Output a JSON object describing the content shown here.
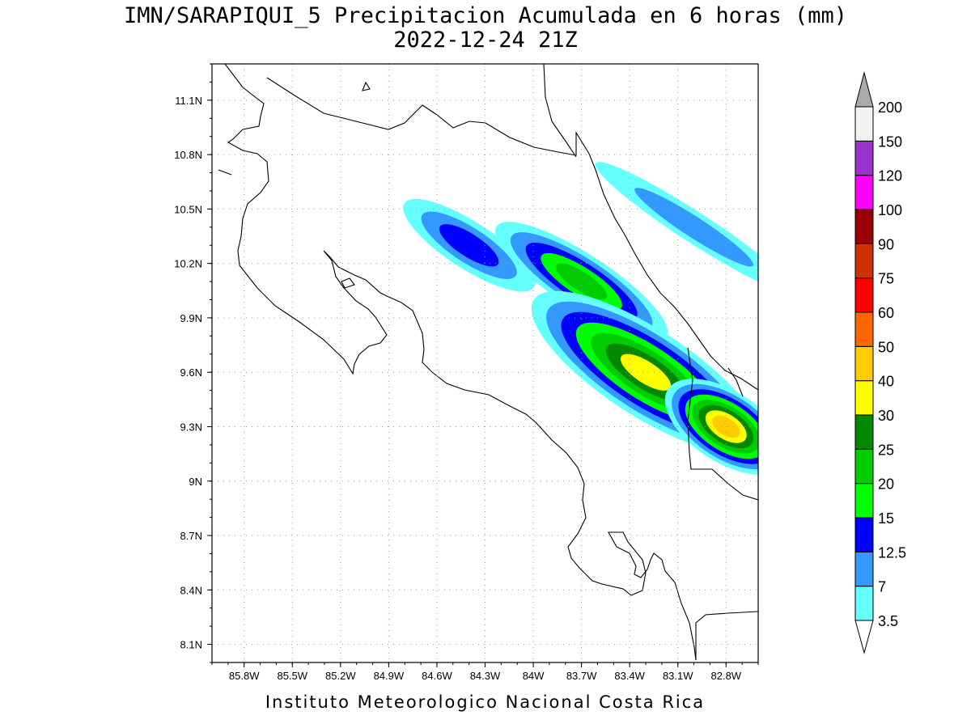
{
  "title_line1": "IMN/SARAPIQUI_5 Precipitacion Acumulada en 6 horas (mm)",
  "title_line2": "2022-12-24 21Z",
  "footer": "Instituto Meteorologico Nacional Costa Rica",
  "chart_data": {
    "type": "heatmap",
    "variable": "Precipitacion Acumulada en 6 horas (mm)",
    "valid_time": "2022-12-24 21Z",
    "grid": true,
    "lon_range": [
      -86.0,
      -82.6
    ],
    "lat_range": [
      8.0,
      11.3
    ],
    "x_ticks": [
      {
        "value": -85.8,
        "label": "85.8W"
      },
      {
        "value": -85.5,
        "label": "85.5W"
      },
      {
        "value": -85.2,
        "label": "85.2W"
      },
      {
        "value": -84.9,
        "label": "84.9W"
      },
      {
        "value": -84.6,
        "label": "84.6W"
      },
      {
        "value": -84.3,
        "label": "84.3W"
      },
      {
        "value": -84.0,
        "label": "84W"
      },
      {
        "value": -83.7,
        "label": "83.7W"
      },
      {
        "value": -83.4,
        "label": "83.4W"
      },
      {
        "value": -83.1,
        "label": "83.1W"
      },
      {
        "value": -82.8,
        "label": "82.8W"
      }
    ],
    "y_ticks": [
      {
        "value": 11.1,
        "label": "11.1N"
      },
      {
        "value": 10.8,
        "label": "10.8N"
      },
      {
        "value": 10.5,
        "label": "10.5N"
      },
      {
        "value": 10.2,
        "label": "10.2N"
      },
      {
        "value": 9.9,
        "label": "9.9N"
      },
      {
        "value": 9.6,
        "label": "9.6N"
      },
      {
        "value": 9.3,
        "label": "9.3N"
      },
      {
        "value": 9.0,
        "label": "9N"
      },
      {
        "value": 8.7,
        "label": "8.7N"
      },
      {
        "value": 8.4,
        "label": "8.4N"
      },
      {
        "value": 8.1,
        "label": "8.1N"
      }
    ],
    "colorbar": {
      "levels": [
        "3.5",
        "7",
        "12.5",
        "15",
        "20",
        "25",
        "30",
        "40",
        "50",
        "60",
        "75",
        "90",
        "100",
        "120",
        "150",
        "200"
      ],
      "colors": [
        "#66ffff",
        "#3399ff",
        "#0000ff",
        "#00ff00",
        "#00cc00",
        "#008800",
        "#ffff00",
        "#ffcc00",
        "#ff6600",
        "#ff0000",
        "#cc3300",
        "#990000",
        "#ff00ff",
        "#9933cc",
        "#f2f2f2",
        "#aaaaaa"
      ]
    },
    "precip_bands": [
      {
        "center_lon": -84.4,
        "center_lat": 10.3,
        "length_deg": 0.9,
        "width_deg": 0.25,
        "level": "12.5"
      },
      {
        "center_lon": -83.7,
        "center_lat": 10.1,
        "length_deg": 1.2,
        "width_deg": 0.3,
        "level": "20"
      },
      {
        "center_lon": -83.3,
        "center_lat": 9.6,
        "length_deg": 1.6,
        "width_deg": 0.5,
        "level": "30"
      },
      {
        "center_lon": -82.8,
        "center_lat": 9.3,
        "length_deg": 0.8,
        "width_deg": 0.4,
        "level": "40"
      },
      {
        "center_lon": -83.0,
        "center_lat": 10.4,
        "length_deg": 1.4,
        "width_deg": 0.15,
        "level": "7"
      }
    ]
  }
}
